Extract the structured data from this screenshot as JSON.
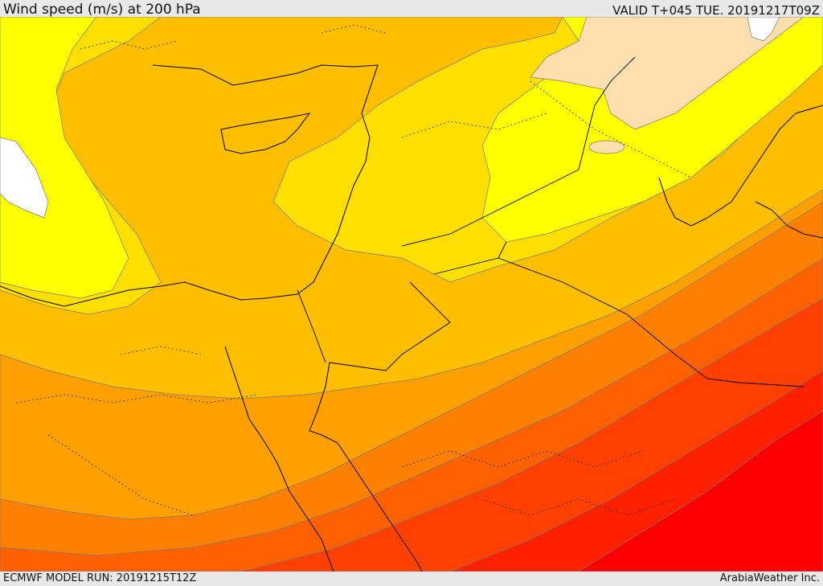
{
  "header": {
    "title": "Wind speed (m/s) at 200 hPa",
    "valid": "VALID T+045 TUE. 20191217T09Z"
  },
  "footer": {
    "model_run": "ECMWF MODEL RUN: 20191215T12Z",
    "provider": "ArabiaWeather Inc."
  },
  "map": {
    "variable": "wind speed",
    "level_hpa": 200,
    "units": "m/s",
    "shading_palette": [
      "#ffffff",
      "#ffdfae",
      "#ffff00",
      "#ffdf00",
      "#ffbf00",
      "#ffa000",
      "#ff8000",
      "#ff6000",
      "#ff4000",
      "#ff2000",
      "#ff0000"
    ]
  }
}
